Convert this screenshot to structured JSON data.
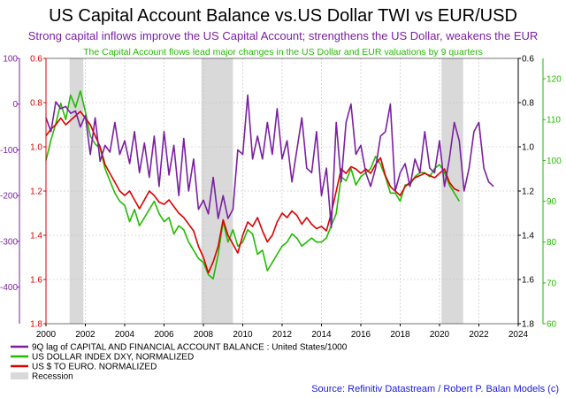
{
  "chart_data": {
    "type": "line",
    "title": "US Capital Account Balance vs.US Dollar TWI vs EUR/USD",
    "subtitle": "Strong capital inflows improve the US Capital Account; strengthens the US Dollar, weakens the EUR",
    "note": "The Capital Account flows lead major changes in the US Dollar and EUR valuations by 9 quarters",
    "source": "Source: Refinitiv Datastream / Robert P. Balan Models (c)",
    "x_axis": {
      "min": 2000,
      "max": 2024,
      "ticks": [
        "2000",
        "2002",
        "2004",
        "2006",
        "2008",
        "2010",
        "2012",
        "2014",
        "2016",
        "2018",
        "2020",
        "2022",
        "2024"
      ]
    },
    "axes": {
      "left_outer": {
        "color": "#7b1fa2",
        "min": -480,
        "max": 100,
        "ticks": [
          "100",
          "0",
          "-100",
          "-200",
          "-300",
          "-400"
        ],
        "tick_values": [
          100,
          0,
          -100,
          -200,
          -300,
          -400
        ]
      },
      "left_inner": {
        "color": "#dd0000",
        "min": 0.6,
        "max": 1.8,
        "inverted": true,
        "ticks": [
          "0.6",
          "0.8",
          "1.0",
          "1.2",
          "1.4",
          "1.6",
          "1.8"
        ],
        "tick_values": [
          0.6,
          0.8,
          1.0,
          1.2,
          1.4,
          1.6,
          1.8
        ]
      },
      "right_inner": {
        "color": "#000000",
        "min": 0.6,
        "max": 1.8,
        "inverted": true,
        "ticks": [
          "0.6",
          "0.8",
          "1.0",
          "1.2",
          "1.4",
          "1.6",
          "1.8"
        ],
        "tick_values": [
          0.6,
          0.8,
          1.0,
          1.2,
          1.4,
          1.6,
          1.8
        ]
      },
      "right_outer": {
        "color": "#22bb00",
        "min": 60,
        "max": 125,
        "ticks": [
          "120",
          "110",
          "100",
          "90",
          "80",
          "70",
          "60"
        ],
        "tick_values": [
          120,
          110,
          100,
          90,
          80,
          70,
          60
        ]
      }
    },
    "grid": true,
    "recessions": [
      [
        2001.2,
        2001.9
      ],
      [
        2007.9,
        2009.5
      ],
      [
        2020.1,
        2021.2
      ]
    ],
    "legend_placement": "bottom-left",
    "series": [
      {
        "name": "9Q lag of CAPITAL AND FINANCIAL ACCOUNT BALANCE : United States/1000",
        "color": "#7b1fa2",
        "axis": "left_outer",
        "x": [
          2000.0,
          2000.25,
          2000.5,
          2000.75,
          2001.0,
          2001.25,
          2001.5,
          2001.75,
          2002.0,
          2002.25,
          2002.5,
          2002.75,
          2003.0,
          2003.25,
          2003.5,
          2003.75,
          2004.0,
          2004.25,
          2004.5,
          2004.75,
          2005.0,
          2005.25,
          2005.5,
          2005.75,
          2006.0,
          2006.25,
          2006.5,
          2006.75,
          2007.0,
          2007.25,
          2007.5,
          2007.75,
          2008.0,
          2008.25,
          2008.5,
          2008.75,
          2009.0,
          2009.25,
          2009.5,
          2009.75,
          2010.0,
          2010.25,
          2010.5,
          2010.75,
          2011.0,
          2011.25,
          2011.5,
          2011.75,
          2012.0,
          2012.25,
          2012.5,
          2012.75,
          2013.0,
          2013.25,
          2013.5,
          2013.75,
          2014.0,
          2014.25,
          2014.5,
          2014.75,
          2015.0,
          2015.25,
          2015.5,
          2015.75,
          2016.0,
          2016.25,
          2016.5,
          2016.75,
          2017.0,
          2017.25,
          2017.5,
          2017.75,
          2018.0,
          2018.25,
          2018.5,
          2018.75,
          2019.0,
          2019.25,
          2019.5,
          2019.75,
          2020.0,
          2020.25,
          2020.5,
          2020.75,
          2021.0,
          2021.25,
          2021.5,
          2021.75,
          2022.0,
          2022.25,
          2022.5,
          2022.75
        ],
        "values": [
          -30,
          -60,
          5,
          -10,
          -5,
          -20,
          -15,
          -50,
          -25,
          -110,
          -30,
          -125,
          -90,
          -105,
          -40,
          -110,
          -80,
          -130,
          -60,
          -150,
          -85,
          -160,
          -70,
          -180,
          -60,
          -155,
          -90,
          -200,
          -75,
          -190,
          -120,
          -230,
          -210,
          -240,
          -160,
          -250,
          -200,
          -250,
          -230,
          -100,
          -110,
          20,
          -120,
          -70,
          -120,
          -40,
          -110,
          -10,
          -120,
          -80,
          -170,
          -100,
          -30,
          -140,
          -150,
          -60,
          -200,
          -140,
          -270,
          -40,
          -170,
          -40,
          0,
          -110,
          -90,
          -150,
          -180,
          -140,
          -70,
          -60,
          0,
          -190,
          -150,
          -130,
          -180,
          -120,
          -150,
          -60,
          -140,
          -150,
          -80,
          -180,
          -120,
          -40,
          -80,
          -190,
          -140,
          -60,
          -40,
          -140,
          -170,
          -180
        ]
      },
      {
        "name": "US DOLLAR INDEX DXY, NORMALIZED",
        "color": "#22bb00",
        "axis": "right_outer",
        "x": [
          2000.0,
          2000.25,
          2000.5,
          2000.75,
          2001.0,
          2001.25,
          2001.5,
          2001.75,
          2002.0,
          2002.25,
          2002.5,
          2002.75,
          2003.0,
          2003.25,
          2003.5,
          2003.75,
          2004.0,
          2004.25,
          2004.5,
          2004.75,
          2005.0,
          2005.25,
          2005.5,
          2005.75,
          2006.0,
          2006.25,
          2006.5,
          2006.75,
          2007.0,
          2007.25,
          2007.5,
          2007.75,
          2008.0,
          2008.25,
          2008.5,
          2008.75,
          2009.0,
          2009.25,
          2009.5,
          2009.75,
          2010.0,
          2010.25,
          2010.5,
          2010.75,
          2011.0,
          2011.25,
          2011.5,
          2011.75,
          2012.0,
          2012.25,
          2012.5,
          2012.75,
          2013.0,
          2013.25,
          2013.5,
          2013.75,
          2014.0,
          2014.25,
          2014.5,
          2014.75,
          2015.0,
          2015.25,
          2015.5,
          2015.75,
          2016.0,
          2016.25,
          2016.5,
          2016.75,
          2017.0,
          2017.25,
          2017.5,
          2017.75,
          2018.0,
          2018.25,
          2018.5,
          2018.75,
          2019.0,
          2019.25,
          2019.5,
          2019.75,
          2020.0,
          2020.25,
          2020.5,
          2020.75,
          2021.0
        ],
        "values": [
          100,
          105,
          109,
          114,
          110,
          116,
          113,
          117,
          112,
          106,
          104,
          103,
          98,
          95,
          92,
          90,
          89,
          85,
          88,
          84,
          86,
          88,
          90,
          87,
          85,
          86,
          82,
          84,
          83,
          80,
          78,
          76,
          75,
          72,
          71,
          77,
          85,
          80,
          83,
          79,
          80,
          83,
          82,
          77,
          78,
          73,
          75,
          77,
          79,
          80,
          82,
          81,
          79,
          80,
          81,
          80,
          80,
          81,
          84,
          87,
          96,
          95,
          98,
          94,
          96,
          97,
          98,
          101,
          99,
          96,
          92,
          92,
          90,
          94,
          94,
          96,
          97,
          97,
          96,
          98,
          99,
          97,
          94,
          92,
          90
        ]
      },
      {
        "name": "US $ TO EURO. NORMALIZED",
        "color": "#dd0000",
        "axis": "left_inner",
        "x": [
          2000.0,
          2000.25,
          2000.5,
          2000.75,
          2001.0,
          2001.25,
          2001.5,
          2001.75,
          2002.0,
          2002.25,
          2002.5,
          2002.75,
          2003.0,
          2003.25,
          2003.5,
          2003.75,
          2004.0,
          2004.25,
          2004.5,
          2004.75,
          2005.0,
          2005.25,
          2005.5,
          2005.75,
          2006.0,
          2006.25,
          2006.5,
          2006.75,
          2007.0,
          2007.25,
          2007.5,
          2007.75,
          2008.0,
          2008.25,
          2008.5,
          2008.75,
          2009.0,
          2009.25,
          2009.5,
          2009.75,
          2010.0,
          2010.25,
          2010.5,
          2010.75,
          2011.0,
          2011.25,
          2011.5,
          2011.75,
          2012.0,
          2012.25,
          2012.5,
          2012.75,
          2013.0,
          2013.25,
          2013.5,
          2013.75,
          2014.0,
          2014.25,
          2014.5,
          2014.75,
          2015.0,
          2015.25,
          2015.5,
          2015.75,
          2016.0,
          2016.25,
          2016.5,
          2016.75,
          2017.0,
          2017.25,
          2017.5,
          2017.75,
          2018.0,
          2018.25,
          2018.5,
          2018.75,
          2019.0,
          2019.25,
          2019.5,
          2019.75,
          2020.0,
          2020.25,
          2020.5,
          2020.75,
          2021.0
        ],
        "values": [
          0.95,
          0.92,
          0.9,
          0.87,
          0.9,
          0.88,
          0.86,
          0.84,
          0.87,
          0.9,
          0.95,
          1.0,
          1.08,
          1.12,
          1.16,
          1.2,
          1.22,
          1.2,
          1.24,
          1.28,
          1.24,
          1.2,
          1.22,
          1.25,
          1.26,
          1.24,
          1.27,
          1.3,
          1.32,
          1.35,
          1.38,
          1.45,
          1.5,
          1.57,
          1.52,
          1.45,
          1.33,
          1.4,
          1.44,
          1.48,
          1.4,
          1.34,
          1.36,
          1.32,
          1.38,
          1.43,
          1.4,
          1.34,
          1.3,
          1.32,
          1.29,
          1.31,
          1.35,
          1.32,
          1.35,
          1.37,
          1.36,
          1.38,
          1.3,
          1.2,
          1.1,
          1.12,
          1.09,
          1.1,
          1.12,
          1.1,
          1.12,
          1.08,
          1.05,
          1.13,
          1.18,
          1.2,
          1.22,
          1.18,
          1.16,
          1.14,
          1.13,
          1.12,
          1.13,
          1.14,
          1.12,
          1.1,
          1.16,
          1.19,
          1.2
        ]
      },
      {
        "name": "Recession",
        "color": "#d9d9d9"
      }
    ]
  }
}
